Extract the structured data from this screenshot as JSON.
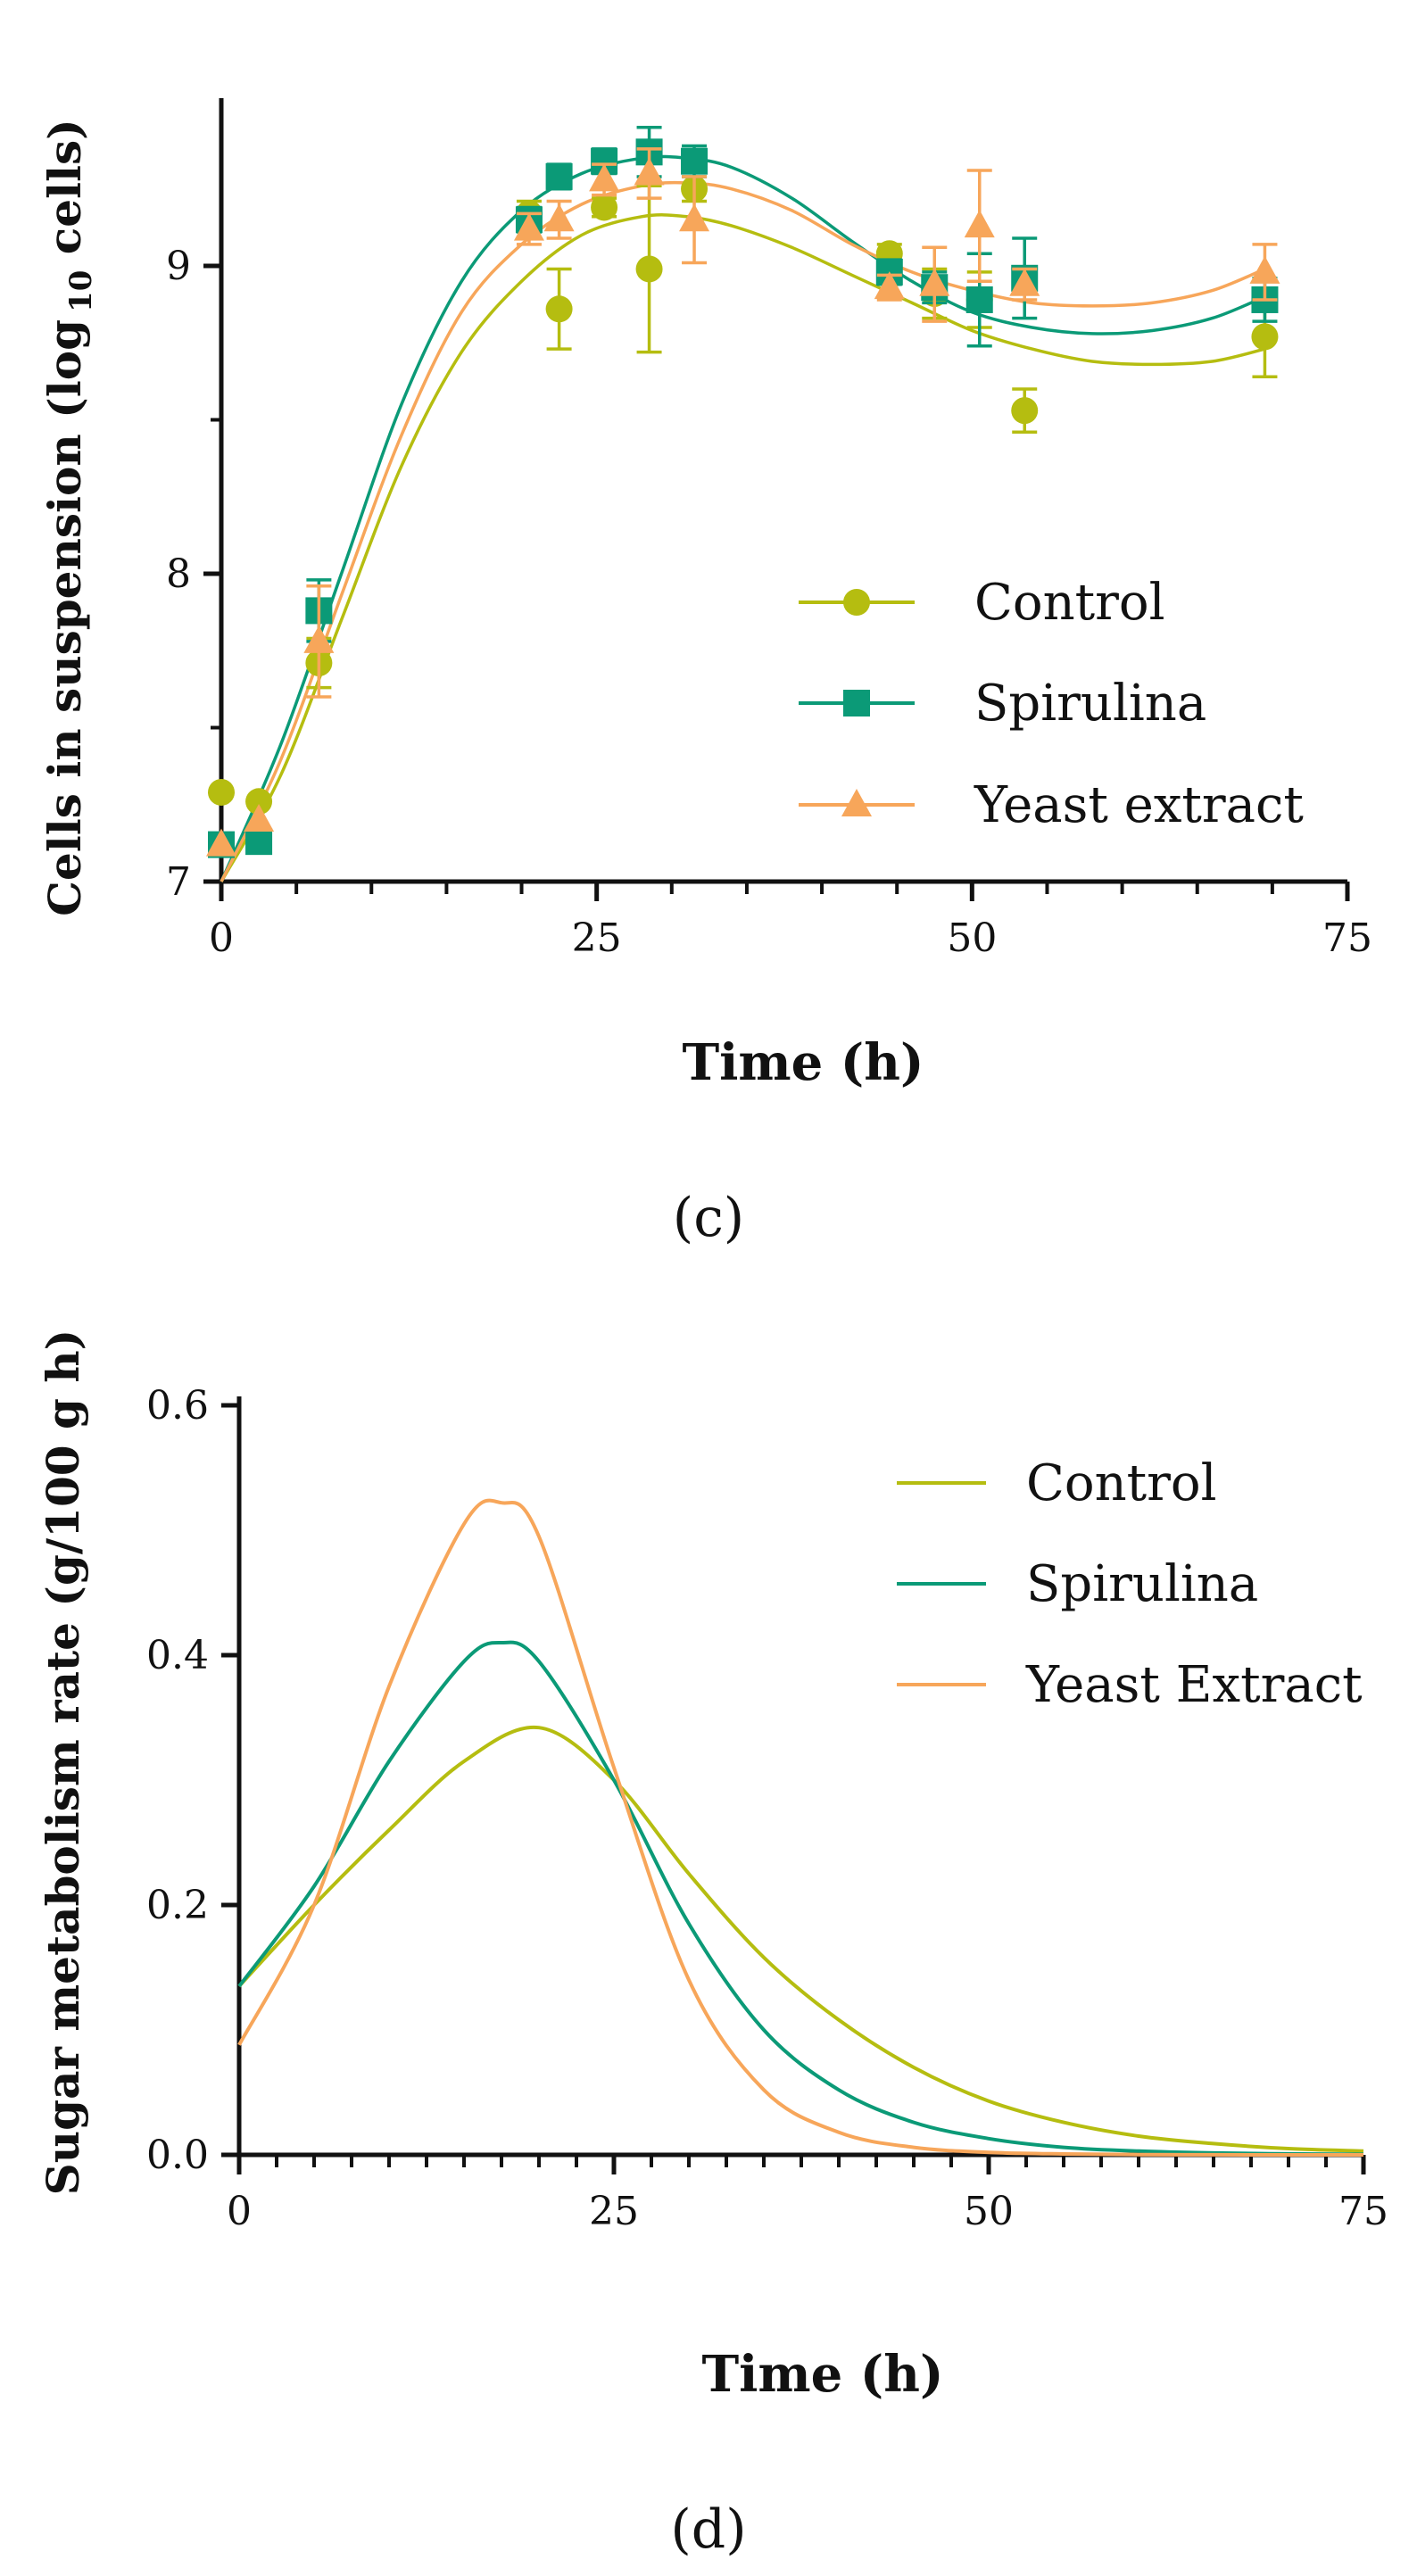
{
  "colors": {
    "control": "#b5bd10",
    "spirulina": "#0b9a77",
    "yeast": "#f7a65a",
    "axis": "#111111"
  },
  "chart_data": [
    {
      "panel": "(c)",
      "type": "scatter",
      "xlabel": "Time (h)",
      "ylabel_main": "Cells in suspension (log",
      "ylabel_sub": "10",
      "ylabel_end": " cells)",
      "xlim": [
        0,
        75
      ],
      "ylim": [
        7,
        9.5
      ],
      "xticks": [
        0,
        25,
        50,
        75
      ],
      "yticks": [
        7,
        8,
        9
      ],
      "xtick_labels": [
        "0",
        "25",
        "50",
        "75"
      ],
      "ytick_labels": [
        "7",
        "8",
        "9"
      ],
      "legend_position": "bottom-right",
      "series": [
        {
          "name": "Control",
          "key": "control",
          "marker": "circle",
          "x": [
            0,
            2.5,
            6.5,
            20.5,
            22.5,
            25.5,
            28.5,
            31.5,
            44.5,
            47.5,
            50.5,
            53.5,
            69.5
          ],
          "y": [
            7.29,
            7.26,
            7.71,
            9.17,
            8.86,
            9.19,
            8.99,
            9.25,
            9.04,
            8.91,
            8.89,
            8.53,
            8.77
          ],
          "err": [
            0,
            0,
            0.08,
            0.04,
            0.13,
            0.03,
            0.27,
            0.04,
            0.03,
            0.08,
            0.09,
            0.07,
            0.13
          ],
          "fit_x": [
            0,
            4,
            8,
            12,
            16,
            20,
            24,
            28,
            31,
            34,
            38,
            42,
            46,
            50,
            54,
            58,
            62,
            66,
            69.5
          ],
          "fit_y": [
            7.0,
            7.35,
            7.85,
            8.35,
            8.72,
            8.95,
            9.1,
            9.16,
            9.16,
            9.13,
            9.06,
            8.97,
            8.88,
            8.79,
            8.73,
            8.69,
            8.68,
            8.69,
            8.73
          ]
        },
        {
          "name": "Spirulina",
          "key": "spirulina",
          "marker": "square",
          "x": [
            0,
            2.5,
            6.5,
            20.5,
            22.5,
            25.5,
            28.5,
            31.5,
            44.5,
            47.5,
            50.5,
            53.5,
            69.5
          ],
          "y": [
            7.12,
            7.13,
            7.88,
            9.15,
            9.29,
            9.34,
            9.37,
            9.34,
            8.98,
            8.93,
            8.89,
            8.96,
            8.89
          ],
          "err": [
            0,
            0,
            0.1,
            0.04,
            0.04,
            0.04,
            0.08,
            0.05,
            0.04,
            0.05,
            0.15,
            0.13,
            0.07
          ],
          "fit_x": [
            0,
            4,
            8,
            12,
            16,
            20,
            24,
            28,
            31,
            34,
            38,
            42,
            46,
            50,
            54,
            58,
            62,
            66,
            69.5
          ],
          "fit_y": [
            7.0,
            7.45,
            8.0,
            8.55,
            8.95,
            9.18,
            9.3,
            9.35,
            9.35,
            9.32,
            9.22,
            9.08,
            8.95,
            8.85,
            8.8,
            8.78,
            8.79,
            8.83,
            8.9
          ]
        },
        {
          "name": "Yeast extract",
          "key": "yeast",
          "marker": "triangle",
          "x": [
            0,
            2.5,
            6.5,
            20.5,
            22.5,
            25.5,
            28.5,
            31.5,
            44.5,
            47.5,
            50.5,
            53.5,
            69.5
          ],
          "y": [
            7.12,
            7.2,
            7.78,
            9.12,
            9.15,
            9.28,
            9.3,
            9.15,
            8.93,
            8.94,
            9.13,
            8.94,
            8.98
          ],
          "err": [
            0,
            0,
            0.18,
            0.05,
            0.06,
            0.05,
            0.08,
            0.14,
            0.04,
            0.12,
            0.18,
            0.05,
            0.09
          ],
          "fit_x": [
            0,
            4,
            8,
            12,
            16,
            20,
            24,
            28,
            31,
            34,
            38,
            42,
            46,
            50,
            54,
            58,
            62,
            66,
            69.5
          ],
          "fit_y": [
            7.0,
            7.4,
            7.93,
            8.45,
            8.85,
            9.07,
            9.2,
            9.26,
            9.27,
            9.25,
            9.18,
            9.07,
            8.98,
            8.92,
            8.88,
            8.87,
            8.88,
            8.92,
            8.99
          ]
        }
      ]
    },
    {
      "panel": "(d)",
      "type": "line",
      "xlabel": "Time (h)",
      "ylabel": "Sugar metabolism rate (g/100 g h)",
      "xlim": [
        0,
        75
      ],
      "ylim": [
        0,
        0.6
      ],
      "xticks": [
        0,
        25,
        50,
        75
      ],
      "yticks": [
        0,
        0.2,
        0.4,
        0.6
      ],
      "xtick_labels": [
        "0",
        "25",
        "50",
        "75"
      ],
      "ytick_labels": [
        "0.0",
        "0.2",
        "0.4",
        "0.6"
      ],
      "legend_position": "top-right",
      "series": [
        {
          "name": "Control",
          "key": "control",
          "x": [
            0,
            5,
            10,
            15,
            20,
            25,
            30,
            35,
            40,
            45,
            50,
            55,
            60,
            65,
            70,
            75
          ],
          "y": [
            0.135,
            0.2,
            0.26,
            0.315,
            0.342,
            0.3,
            0.225,
            0.158,
            0.108,
            0.07,
            0.043,
            0.026,
            0.015,
            0.009,
            0.005,
            0.003
          ]
        },
        {
          "name": "Spirulina",
          "key": "spirulina",
          "x": [
            0,
            5,
            10,
            15,
            17.5,
            20,
            25,
            30,
            35,
            40,
            45,
            50,
            55,
            60,
            65,
            70,
            75
          ],
          "y": [
            0.135,
            0.215,
            0.315,
            0.395,
            0.41,
            0.395,
            0.3,
            0.185,
            0.1,
            0.052,
            0.026,
            0.013,
            0.006,
            0.003,
            0.0015,
            0.0008,
            0.0004
          ]
        },
        {
          "name": "Yeast Extract",
          "key": "yeast",
          "x": [
            0,
            5,
            10,
            15,
            17.5,
            20,
            25,
            30,
            35,
            40,
            45,
            50,
            55,
            60,
            65,
            70,
            75
          ],
          "y": [
            0.088,
            0.2,
            0.375,
            0.505,
            0.522,
            0.495,
            0.31,
            0.14,
            0.052,
            0.018,
            0.006,
            0.002,
            0.0007,
            0.0002,
            0.0001,
            0.0,
            0.0
          ]
        }
      ]
    }
  ]
}
